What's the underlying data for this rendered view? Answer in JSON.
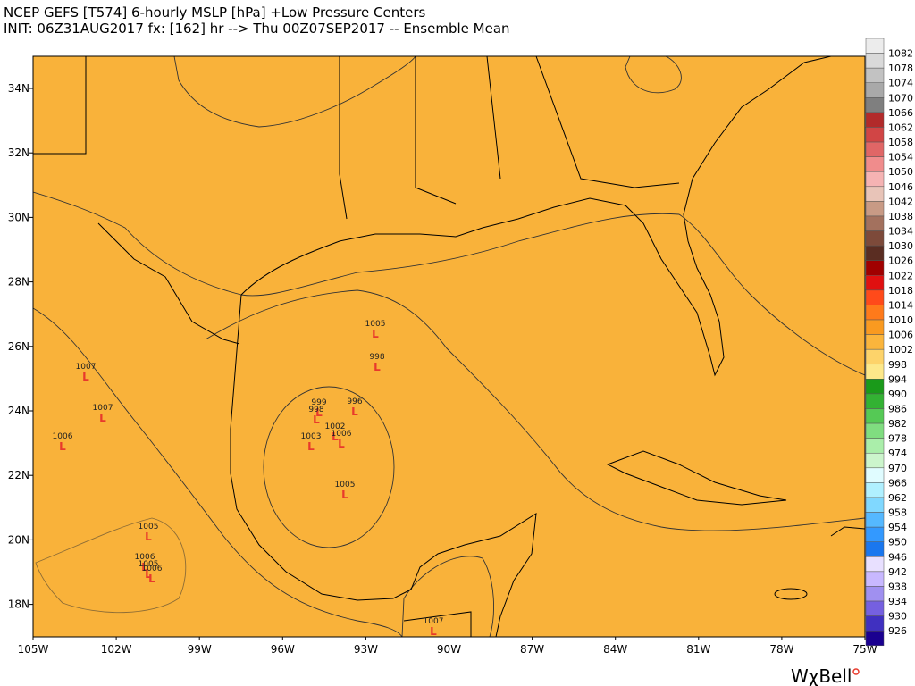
{
  "header": {
    "title": "NCEP GEFS [T574] 6-hourly MSLP [hPa]  +Low Pressure Centers",
    "subtitle": "INIT: 06Z31AUG2017 fx: [162] hr --> Thu 00Z07SEP2017 -- Ensemble Mean"
  },
  "axes": {
    "lat_labels": [
      "34N",
      "32N",
      "30N",
      "28N",
      "26N",
      "24N",
      "22N",
      "20N",
      "18N"
    ],
    "lon_labels": [
      "105W",
      "102W",
      "99W",
      "96W",
      "93W",
      "90W",
      "87W",
      "84W",
      "81W",
      "78W",
      "75W"
    ]
  },
  "colorbar": {
    "labels": [
      "1082",
      "1078",
      "1074",
      "1070",
      "1066",
      "1062",
      "1058",
      "1054",
      "1050",
      "1046",
      "1042",
      "1038",
      "1034",
      "1030",
      "1026",
      "1022",
      "1018",
      "1014",
      "1010",
      "1006",
      "1002",
      "998",
      "994",
      "990",
      "986",
      "982",
      "978",
      "974",
      "970",
      "966",
      "962",
      "958",
      "954",
      "950",
      "946",
      "942",
      "938",
      "934",
      "930",
      "926"
    ]
  },
  "low_marker": "L",
  "low_centers": [
    "1005",
    "998",
    "999",
    "998",
    "996",
    "1002",
    "1003",
    "1006",
    "1005",
    "1007",
    "1007",
    "1006",
    "1005",
    "1006",
    "1005",
    "1006",
    "1007"
  ],
  "logo": "WχBell"
}
